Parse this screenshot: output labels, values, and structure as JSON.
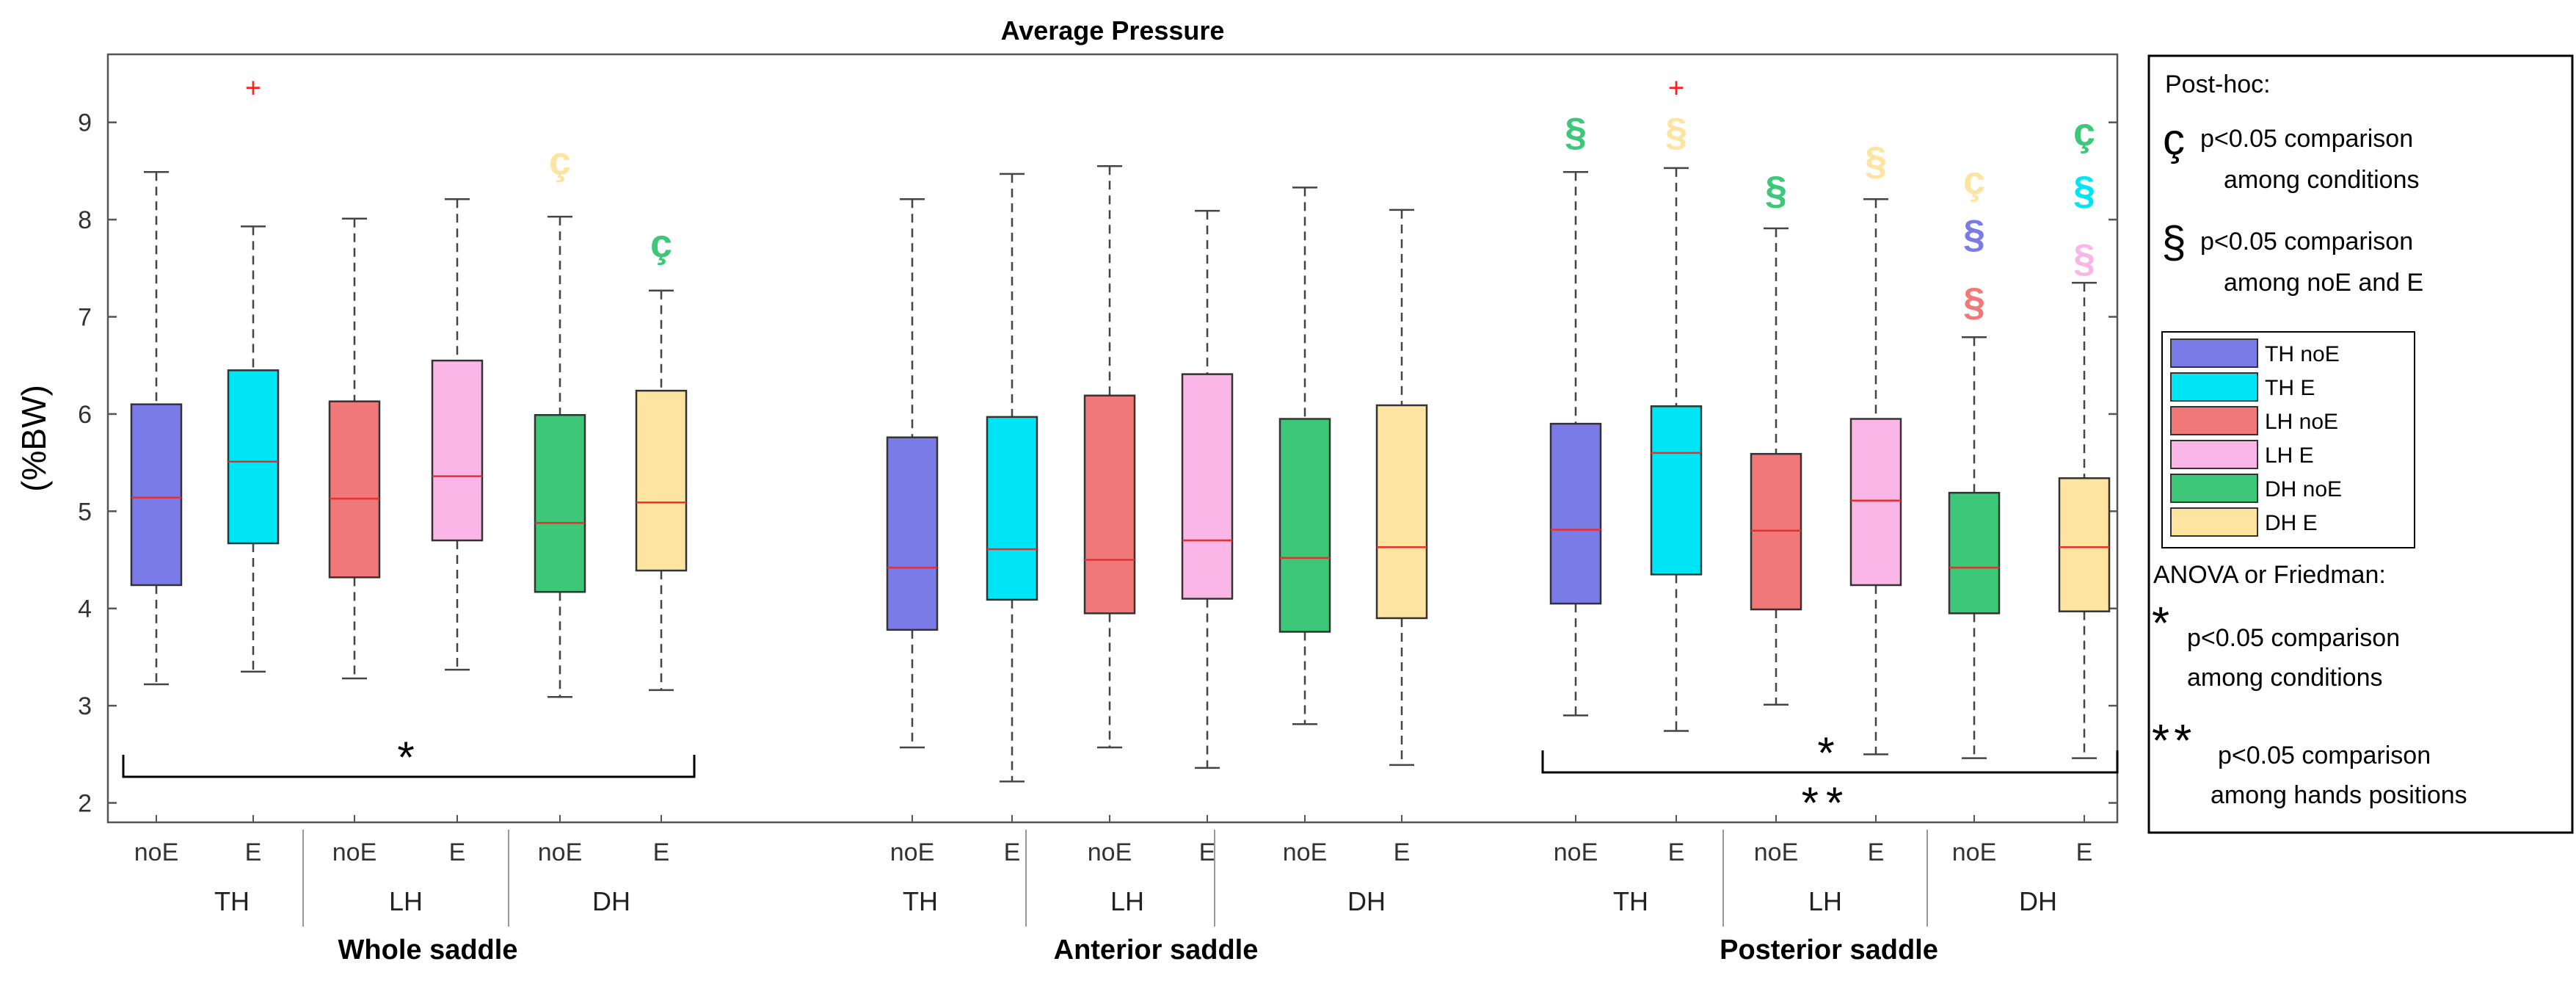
{
  "chart_data": {
    "type": "box",
    "title": "Average Pressure",
    "ylabel": "(%BW)",
    "ylim": [
      1.8,
      9.7
    ],
    "yticks": [
      2,
      3,
      4,
      5,
      6,
      7,
      8,
      9
    ],
    "grid": false,
    "series_colors": {
      "TH noE": "#7b7be8",
      "TH E": "#00e5f5",
      "LH noE": "#f07878",
      "LH E": "#fbb6e8",
      "DH noE": "#3cc878",
      "DH E": "#fde4a0"
    },
    "groups": [
      {
        "name": "Whole saddle",
        "hands": [
          "TH",
          "LH",
          "DH"
        ],
        "boxes": [
          {
            "hand": "TH",
            "cond": "noE",
            "series": "TH noE",
            "lower_whisker": 3.22,
            "q1": 4.24,
            "median": 5.14,
            "q3": 6.1,
            "upper_whisker": 8.49,
            "outliers": [],
            "marks": []
          },
          {
            "hand": "TH",
            "cond": "E",
            "series": "TH E",
            "lower_whisker": 3.35,
            "q1": 4.67,
            "median": 5.51,
            "q3": 6.45,
            "upper_whisker": 7.93,
            "outliers": [
              9.35
            ],
            "marks": []
          },
          {
            "hand": "LH",
            "cond": "noE",
            "series": "LH noE",
            "lower_whisker": 3.28,
            "q1": 4.32,
            "median": 5.13,
            "q3": 6.13,
            "upper_whisker": 8.01,
            "outliers": [],
            "marks": []
          },
          {
            "hand": "LH",
            "cond": "E",
            "series": "LH E",
            "lower_whisker": 3.37,
            "q1": 4.7,
            "median": 5.36,
            "q3": 6.55,
            "upper_whisker": 8.21,
            "outliers": [],
            "marks": []
          },
          {
            "hand": "DH",
            "cond": "noE",
            "series": "DH noE",
            "lower_whisker": 3.09,
            "q1": 4.17,
            "median": 4.88,
            "q3": 5.99,
            "upper_whisker": 8.03,
            "outliers": [],
            "marks": [
              {
                "symbol": "ç",
                "series": "DH E",
                "value": 8.6
              }
            ]
          },
          {
            "hand": "DH",
            "cond": "E",
            "series": "DH E",
            "lower_whisker": 3.16,
            "q1": 4.39,
            "median": 5.09,
            "q3": 6.24,
            "upper_whisker": 7.27,
            "outliers": [],
            "marks": [
              {
                "symbol": "ç",
                "series": "DH noE",
                "value": 7.75
              }
            ]
          }
        ],
        "significance": {
          "text": "*",
          "extra": ""
        }
      },
      {
        "name": "Anterior saddle",
        "hands": [
          "TH",
          "LH",
          "DH"
        ],
        "boxes": [
          {
            "hand": "TH",
            "cond": "noE",
            "series": "TH noE",
            "lower_whisker": 2.57,
            "q1": 3.78,
            "median": 4.42,
            "q3": 5.76,
            "upper_whisker": 8.21,
            "outliers": [],
            "marks": []
          },
          {
            "hand": "TH",
            "cond": "E",
            "series": "TH E",
            "lower_whisker": 2.22,
            "q1": 4.09,
            "median": 4.61,
            "q3": 5.97,
            "upper_whisker": 8.47,
            "outliers": [],
            "marks": []
          },
          {
            "hand": "LH",
            "cond": "noE",
            "series": "LH noE",
            "lower_whisker": 2.57,
            "q1": 3.95,
            "median": 4.5,
            "q3": 6.19,
            "upper_whisker": 8.55,
            "outliers": [],
            "marks": []
          },
          {
            "hand": "LH",
            "cond": "E",
            "series": "LH E",
            "lower_whisker": 2.36,
            "q1": 4.1,
            "median": 4.7,
            "q3": 6.41,
            "upper_whisker": 8.09,
            "outliers": [],
            "marks": []
          },
          {
            "hand": "DH",
            "cond": "noE",
            "series": "DH noE",
            "lower_whisker": 2.81,
            "q1": 3.76,
            "median": 4.52,
            "q3": 5.95,
            "upper_whisker": 8.33,
            "outliers": [],
            "marks": []
          },
          {
            "hand": "DH",
            "cond": "E",
            "series": "DH E",
            "lower_whisker": 2.39,
            "q1": 3.9,
            "median": 4.63,
            "q3": 6.09,
            "upper_whisker": 8.1,
            "outliers": [],
            "marks": []
          }
        ],
        "significance": null
      },
      {
        "name": "Posterior saddle",
        "hands": [
          "TH",
          "LH",
          "DH"
        ],
        "boxes": [
          {
            "hand": "TH",
            "cond": "noE",
            "series": "TH noE",
            "lower_whisker": 2.9,
            "q1": 4.05,
            "median": 4.81,
            "q3": 5.9,
            "upper_whisker": 8.49,
            "outliers": [],
            "marks": [
              {
                "symbol": "§",
                "series": "DH noE",
                "value": 8.9
              }
            ]
          },
          {
            "hand": "TH",
            "cond": "E",
            "series": "TH E",
            "lower_whisker": 2.74,
            "q1": 4.35,
            "median": 5.6,
            "q3": 6.08,
            "upper_whisker": 8.53,
            "outliers": [
              9.35
            ],
            "marks": [
              {
                "symbol": "§",
                "series": "DH E",
                "value": 8.9
              }
            ]
          },
          {
            "hand": "LH",
            "cond": "noE",
            "series": "LH noE",
            "lower_whisker": 3.01,
            "q1": 3.99,
            "median": 4.8,
            "q3": 5.59,
            "upper_whisker": 7.91,
            "outliers": [],
            "marks": [
              {
                "symbol": "§",
                "series": "DH noE",
                "value": 8.3
              }
            ]
          },
          {
            "hand": "LH",
            "cond": "E",
            "series": "LH E",
            "lower_whisker": 2.5,
            "q1": 4.24,
            "median": 5.11,
            "q3": 5.95,
            "upper_whisker": 8.21,
            "outliers": [],
            "marks": [
              {
                "symbol": "§",
                "series": "DH E",
                "value": 8.6
              }
            ]
          },
          {
            "hand": "DH",
            "cond": "noE",
            "series": "DH noE",
            "lower_whisker": 2.46,
            "q1": 3.95,
            "median": 4.42,
            "q3": 5.19,
            "upper_whisker": 6.79,
            "outliers": [],
            "marks": [
              {
                "symbol": "ç",
                "series": "DH E",
                "value": 8.4
              },
              {
                "symbol": "§",
                "series": "TH noE",
                "value": 7.85
              },
              {
                "symbol": "§",
                "series": "LH noE",
                "value": 7.15
              }
            ]
          },
          {
            "hand": "DH",
            "cond": "E",
            "series": "DH E",
            "lower_whisker": 2.46,
            "q1": 3.97,
            "median": 4.63,
            "q3": 5.34,
            "upper_whisker": 7.35,
            "outliers": [],
            "marks": [
              {
                "symbol": "ç",
                "series": "DH noE",
                "value": 8.9
              },
              {
                "symbol": "§",
                "series": "TH E",
                "value": 8.3
              },
              {
                "symbol": "§",
                "series": "LH E",
                "value": 7.6
              }
            ]
          }
        ],
        "significance": {
          "text": "*",
          "extra": "**"
        }
      }
    ],
    "legend": {
      "posthoc_title": "Post-hoc:",
      "entries_symbols": [
        {
          "symbol": "ç",
          "line1": "p<0.05 comparison",
          "line2": "among conditions"
        },
        {
          "symbol": "§",
          "line1": "p<0.05 comparison",
          "line2": "among noE and E"
        }
      ],
      "series": [
        "TH noE",
        "TH E",
        "LH noE",
        "LH E",
        "DH noE",
        "DH E"
      ],
      "anova_title": "ANOVA or Friedman:",
      "entries_stars": [
        {
          "symbol": "*",
          "line1": "p<0.05 comparison",
          "line2": "among conditions"
        },
        {
          "symbol": "**",
          "line1": "p<0.05 comparison",
          "line2": "among hands positions"
        }
      ]
    }
  }
}
